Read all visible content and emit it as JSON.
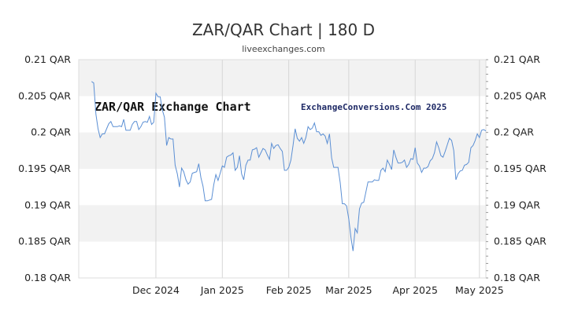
{
  "header": {
    "title": "ZAR/QAR Chart | 180 D",
    "subtitle": "liveexchanges.com"
  },
  "chart_data": {
    "type": "line",
    "title": "ZAR/QAR Chart | 180 D",
    "subtitle": "liveexchanges.com",
    "xlabel": "",
    "ylabel": "",
    "ylim": [
      0.18,
      0.21
    ],
    "grid": true,
    "y_ticks": [
      {
        "value": 0.21,
        "label": "0.21 QAR"
      },
      {
        "value": 0.205,
        "label": "0.205 QAR"
      },
      {
        "value": 0.2,
        "label": "0.2 QAR"
      },
      {
        "value": 0.195,
        "label": "0.195 QAR"
      },
      {
        "value": 0.19,
        "label": "0.19 QAR"
      },
      {
        "value": 0.185,
        "label": "0.185 QAR"
      },
      {
        "value": 0.18,
        "label": "0.18 QAR"
      }
    ],
    "x_ticks": [
      {
        "day": 36,
        "label": "Dec 2024"
      },
      {
        "day": 67,
        "label": "Jan 2025"
      },
      {
        "day": 98,
        "label": "Feb 2025"
      },
      {
        "day": 126,
        "label": "Mar 2025"
      },
      {
        "day": 157,
        "label": "Apr 2025"
      },
      {
        "day": 187,
        "label": "May 2025"
      }
    ],
    "x_range": [
      0,
      190
    ],
    "annotations": [
      {
        "text": "ZAR/QAR Exchange Chart",
        "position": "top-left"
      },
      {
        "text": "ExchangeConversions.Com 2025",
        "position": "top-center"
      }
    ],
    "series": [
      {
        "color": "#5b8fd4",
        "points": [
          [
            6,
            0.207
          ],
          [
            7,
            0.2068
          ],
          [
            8,
            0.2025
          ],
          [
            9,
            0.2005
          ],
          [
            10,
            0.1993
          ],
          [
            11,
            0.1998
          ],
          [
            12,
            0.1998
          ],
          [
            13,
            0.2005
          ],
          [
            14,
            0.2012
          ],
          [
            15,
            0.2015
          ],
          [
            16,
            0.2008
          ],
          [
            17,
            0.2008
          ],
          [
            18,
            0.2008
          ],
          [
            19,
            0.2009
          ],
          [
            20,
            0.2008
          ],
          [
            21,
            0.2018
          ],
          [
            22,
            0.2003
          ],
          [
            23,
            0.2003
          ],
          [
            24,
            0.2003
          ],
          [
            25,
            0.2011
          ],
          [
            26,
            0.2015
          ],
          [
            27,
            0.2015
          ],
          [
            28,
            0.2004
          ],
          [
            29,
            0.2008
          ],
          [
            30,
            0.2014
          ],
          [
            31,
            0.2015
          ],
          [
            32,
            0.2014
          ],
          [
            33,
            0.2022
          ],
          [
            34,
            0.2011
          ],
          [
            35,
            0.2014
          ],
          [
            36,
            0.2054
          ],
          [
            37,
            0.2049
          ],
          [
            38,
            0.2049
          ],
          [
            39,
            0.2031
          ],
          [
            40,
            0.2021
          ],
          [
            41,
            0.1982
          ],
          [
            42,
            0.1993
          ],
          [
            43,
            0.1991
          ],
          [
            44,
            0.1991
          ],
          [
            45,
            0.1955
          ],
          [
            46,
            0.1943
          ],
          [
            47,
            0.1925
          ],
          [
            48,
            0.1951
          ],
          [
            49,
            0.1946
          ],
          [
            50,
            0.1935
          ],
          [
            51,
            0.1929
          ],
          [
            52,
            0.1932
          ],
          [
            53,
            0.1944
          ],
          [
            54,
            0.1945
          ],
          [
            55,
            0.1946
          ],
          [
            56,
            0.1957
          ],
          [
            57,
            0.1938
          ],
          [
            58,
            0.1926
          ],
          [
            59,
            0.1906
          ],
          [
            60,
            0.1906
          ],
          [
            61,
            0.1907
          ],
          [
            62,
            0.1908
          ],
          [
            63,
            0.1928
          ],
          [
            64,
            0.1942
          ],
          [
            65,
            0.1934
          ],
          [
            66,
            0.1944
          ],
          [
            67,
            0.1954
          ],
          [
            68,
            0.1952
          ],
          [
            69,
            0.1966
          ],
          [
            70,
            0.1968
          ],
          [
            71,
            0.1969
          ],
          [
            72,
            0.1972
          ],
          [
            73,
            0.1948
          ],
          [
            74,
            0.1952
          ],
          [
            75,
            0.1968
          ],
          [
            76,
            0.1943
          ],
          [
            77,
            0.1935
          ],
          [
            78,
            0.1955
          ],
          [
            79,
            0.1962
          ],
          [
            80,
            0.1962
          ],
          [
            81,
            0.1976
          ],
          [
            82,
            0.1977
          ],
          [
            83,
            0.1979
          ],
          [
            84,
            0.1966
          ],
          [
            85,
            0.1972
          ],
          [
            86,
            0.1978
          ],
          [
            87,
            0.1976
          ],
          [
            88,
            0.1969
          ],
          [
            89,
            0.1963
          ],
          [
            90,
            0.1985
          ],
          [
            91,
            0.1978
          ],
          [
            92,
            0.1982
          ],
          [
            93,
            0.1983
          ],
          [
            94,
            0.1978
          ],
          [
            95,
            0.1974
          ],
          [
            96,
            0.1948
          ],
          [
            97,
            0.1948
          ],
          [
            98,
            0.1952
          ],
          [
            99,
            0.1962
          ],
          [
            100,
            0.1982
          ],
          [
            101,
            0.2005
          ],
          [
            102,
            0.1992
          ],
          [
            103,
            0.1988
          ],
          [
            104,
            0.1993
          ],
          [
            105,
            0.1985
          ],
          [
            106,
            0.1993
          ],
          [
            107,
            0.2008
          ],
          [
            108,
            0.2004
          ],
          [
            109,
            0.2006
          ],
          [
            110,
            0.2013
          ],
          [
            111,
            0.2001
          ],
          [
            112,
            0.2001
          ],
          [
            113,
            0.1996
          ],
          [
            114,
            0.1998
          ],
          [
            115,
            0.1995
          ],
          [
            116,
            0.1985
          ],
          [
            117,
            0.1998
          ],
          [
            118,
            0.1965
          ],
          [
            119,
            0.1952
          ],
          [
            120,
            0.1952
          ],
          [
            121,
            0.1952
          ],
          [
            122,
            0.1931
          ],
          [
            123,
            0.1902
          ],
          [
            124,
            0.1902
          ],
          [
            125,
            0.1899
          ],
          [
            126,
            0.1881
          ],
          [
            127,
            0.1856
          ],
          [
            128,
            0.1837
          ],
          [
            129,
            0.1868
          ],
          [
            130,
            0.1862
          ],
          [
            131,
            0.1895
          ],
          [
            132,
            0.1903
          ],
          [
            133,
            0.1904
          ],
          [
            134,
            0.1918
          ],
          [
            135,
            0.1932
          ],
          [
            136,
            0.1932
          ],
          [
            137,
            0.1932
          ],
          [
            138,
            0.1935
          ],
          [
            139,
            0.1934
          ],
          [
            140,
            0.1934
          ],
          [
            141,
            0.1948
          ],
          [
            142,
            0.1951
          ],
          [
            143,
            0.1946
          ],
          [
            144,
            0.1962
          ],
          [
            145,
            0.1956
          ],
          [
            146,
            0.1949
          ],
          [
            147,
            0.1976
          ],
          [
            148,
            0.1966
          ],
          [
            149,
            0.1958
          ],
          [
            150,
            0.1958
          ],
          [
            151,
            0.1959
          ],
          [
            152,
            0.1962
          ],
          [
            153,
            0.1952
          ],
          [
            154,
            0.1956
          ],
          [
            155,
            0.1964
          ],
          [
            156,
            0.1963
          ],
          [
            157,
            0.1979
          ],
          [
            158,
            0.1958
          ],
          [
            159,
            0.1954
          ],
          [
            160,
            0.1945
          ],
          [
            161,
            0.1951
          ],
          [
            162,
            0.1951
          ],
          [
            163,
            0.1953
          ],
          [
            164,
            0.1961
          ],
          [
            165,
            0.1964
          ],
          [
            166,
            0.1972
          ],
          [
            167,
            0.1987
          ],
          [
            168,
            0.1979
          ],
          [
            169,
            0.1968
          ],
          [
            170,
            0.1966
          ],
          [
            171,
            0.1974
          ],
          [
            172,
            0.1983
          ],
          [
            173,
            0.1992
          ],
          [
            174,
            0.1989
          ],
          [
            175,
            0.1975
          ],
          [
            176,
            0.1935
          ],
          [
            177,
            0.1943
          ],
          [
            178,
            0.1947
          ],
          [
            179,
            0.1948
          ],
          [
            180,
            0.1955
          ],
          [
            181,
            0.1956
          ],
          [
            182,
            0.1959
          ],
          [
            183,
            0.1979
          ],
          [
            184,
            0.1982
          ],
          [
            185,
            0.1989
          ],
          [
            186,
            0.1998
          ],
          [
            187,
            0.1993
          ],
          [
            188,
            0.2003
          ],
          [
            189,
            0.2004
          ],
          [
            190,
            0.2002
          ]
        ]
      }
    ]
  }
}
